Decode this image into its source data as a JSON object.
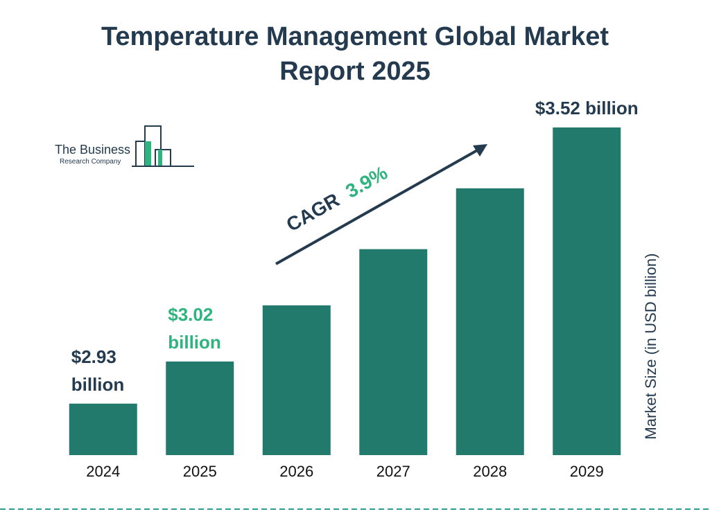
{
  "logo": {
    "line1": "The Business",
    "line2": "Research Company"
  },
  "chart_data": {
    "type": "bar",
    "title": "Temperature Management Global Market Report 2025",
    "y_axis_label": "Market Size (in USD billion)",
    "categories": [
      "2024",
      "2025",
      "2026",
      "2027",
      "2028",
      "2029"
    ],
    "values": [
      2.93,
      3.02,
      3.14,
      3.26,
      3.39,
      3.52
    ],
    "value_labels": [
      "$2.93 billion",
      "$3.02 billion",
      null,
      null,
      null,
      "$3.52 billion"
    ],
    "color": "#217a6b",
    "ylim": [
      2.82,
      3.52
    ],
    "annotation": {
      "label": "CAGR",
      "value": "3.9%"
    }
  }
}
